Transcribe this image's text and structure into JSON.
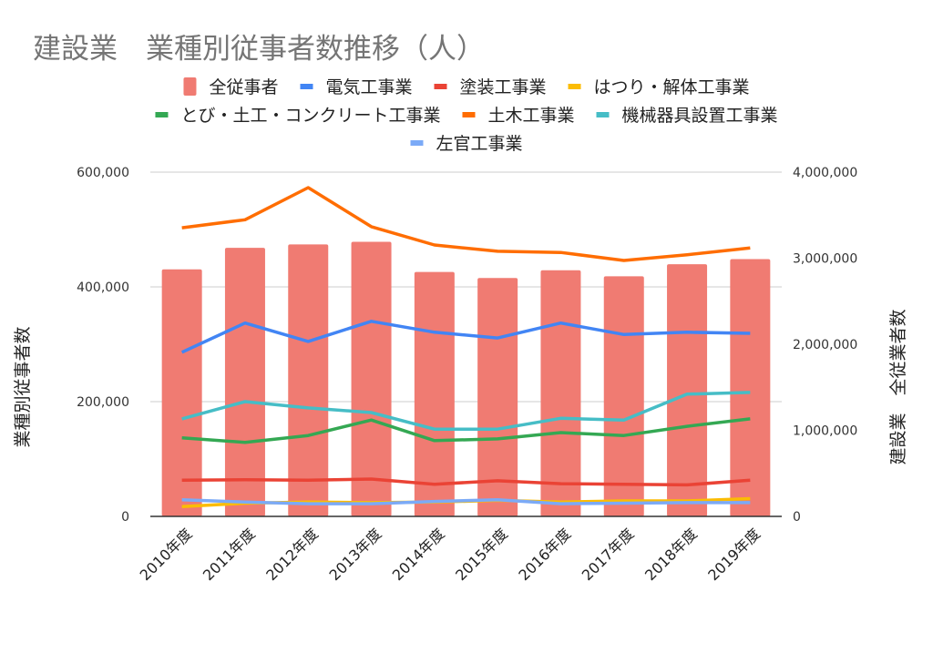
{
  "chart_data": {
    "type": "bar+line",
    "title": "建設業　業種別従事者数推移（人）",
    "ylabel_left": "業種別従事者数",
    "ylabel_right": "建設業　全従業者数",
    "ylim_left": [
      0,
      600000
    ],
    "ylim_right": [
      0,
      4000000
    ],
    "yticks_left": [
      "0",
      "200,000",
      "400,000",
      "600,000"
    ],
    "yticks_right": [
      "0",
      "1,000,000",
      "2,000,000",
      "3,000,000",
      "4,000,000"
    ],
    "grid": true,
    "legend_position": "top",
    "categories": [
      "2010年度",
      "2011年度",
      "2012年度",
      "2013年度",
      "2014年度",
      "2015年度",
      "2016年度",
      "2017年度",
      "2018年度",
      "2019年度"
    ],
    "series": [
      {
        "name": "全従事者",
        "type": "bar",
        "axis": "right",
        "color": "#f07b72",
        "values": [
          2870000,
          3120000,
          3160000,
          3190000,
          2840000,
          2770000,
          2860000,
          2790000,
          2930000,
          2990000
        ]
      },
      {
        "name": "電気工事業",
        "type": "line",
        "axis": "left",
        "color": "#4285f4",
        "values": [
          286000,
          337000,
          305000,
          340000,
          321000,
          311000,
          337000,
          317000,
          321000,
          319000
        ]
      },
      {
        "name": "塗装工事業",
        "type": "line",
        "axis": "left",
        "color": "#ea4335",
        "values": [
          63000,
          64000,
          63000,
          65000,
          56000,
          62000,
          57000,
          56000,
          55000,
          63000
        ]
      },
      {
        "name": "はつり・解体工事業",
        "type": "line",
        "axis": "left",
        "color": "#fbbc04",
        "values": [
          17000,
          23000,
          25000,
          24000,
          25000,
          28000,
          25000,
          27000,
          27000,
          31000
        ]
      },
      {
        "name": "とび・土工・コンクリート工事業",
        "type": "line",
        "axis": "left",
        "color": "#34a853",
        "values": [
          137000,
          129000,
          141000,
          168000,
          132000,
          135000,
          146000,
          141000,
          157000,
          170000
        ]
      },
      {
        "name": "土木工事業",
        "type": "line",
        "axis": "left",
        "color": "#ff6d01",
        "values": [
          503000,
          517000,
          573000,
          505000,
          473000,
          462000,
          460000,
          446000,
          456000,
          468000
        ]
      },
      {
        "name": "機械器具設置工事業",
        "type": "line",
        "axis": "left",
        "color": "#46bdc6",
        "values": [
          170000,
          200000,
          189000,
          181000,
          152000,
          152000,
          171000,
          168000,
          213000,
          216000
        ]
      },
      {
        "name": "左官工事業",
        "type": "line",
        "axis": "left",
        "color": "#7baaf7",
        "values": [
          29000,
          25000,
          22000,
          22000,
          26000,
          29000,
          22000,
          23000,
          24000,
          24000
        ]
      }
    ]
  }
}
